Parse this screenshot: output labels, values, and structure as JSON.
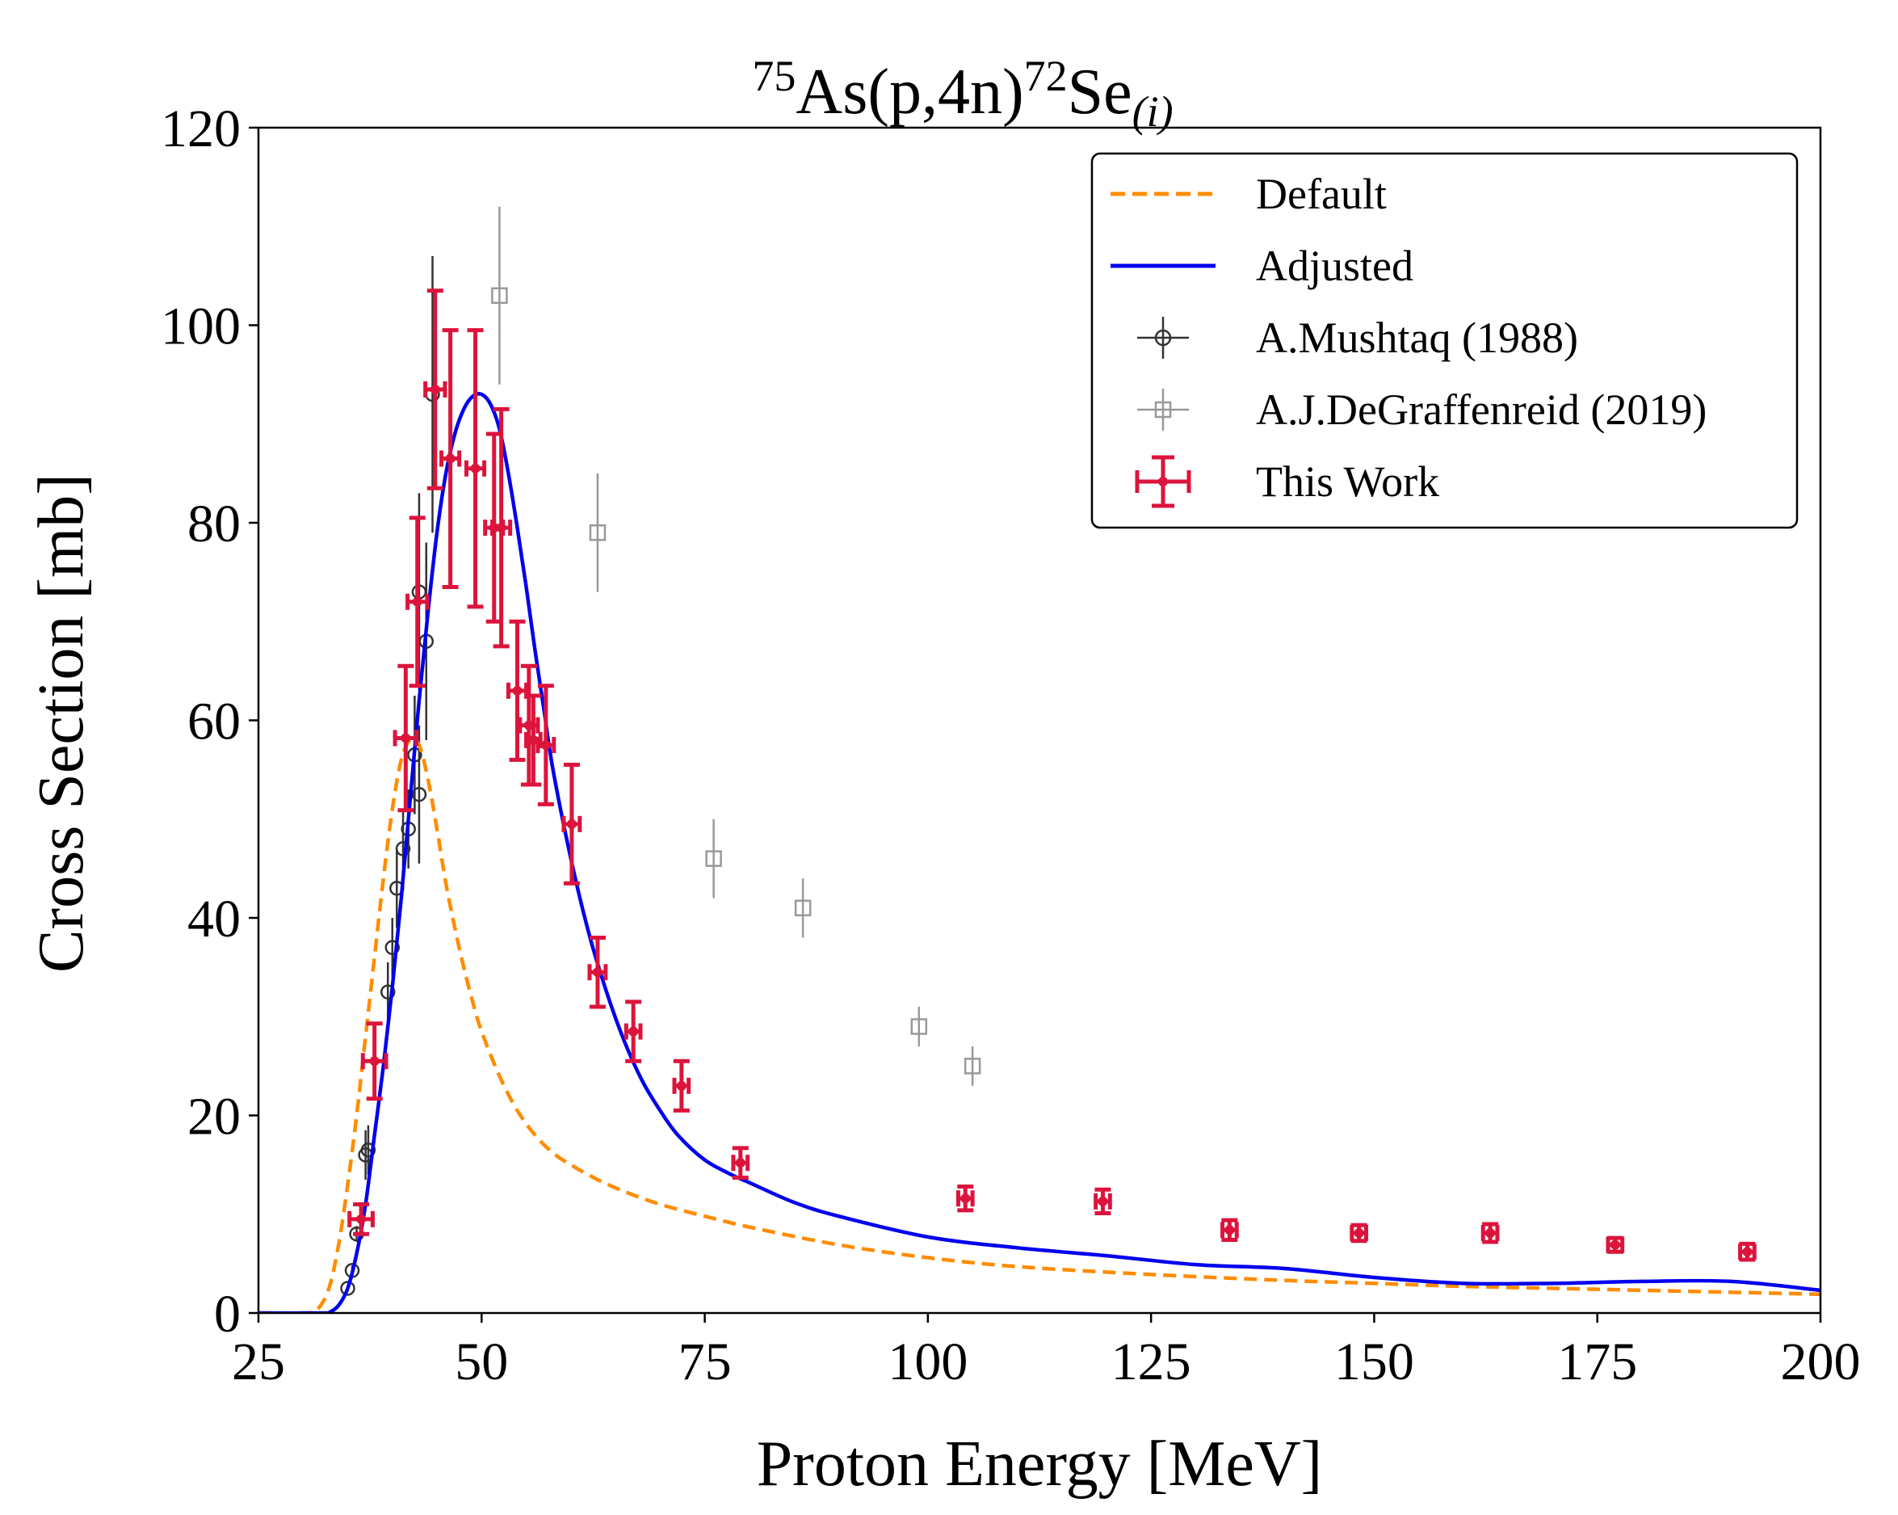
{
  "chart_data": {
    "type": "scatter",
    "title": {
      "target_mass": "75",
      "reaction": "As(p,4n)",
      "product_mass": "72",
      "product": "Se",
      "subscript": "(i)"
    },
    "xlabel": "Proton Energy [MeV]",
    "ylabel": "Cross Section [mb]",
    "xlim": [
      25,
      200
    ],
    "ylim": [
      0,
      120
    ],
    "xticks": [
      25,
      50,
      75,
      100,
      125,
      150,
      175,
      200
    ],
    "yticks": [
      0,
      20,
      40,
      60,
      80,
      100,
      120
    ],
    "grid": false,
    "legend_position": "top-right",
    "colors": {
      "default": "#ff8c00",
      "adjusted": "#0000ee",
      "mushtaq": "#333333",
      "degraffenreid": "#999999",
      "this_work": "#dc143c"
    },
    "curves": [
      {
        "name": "Default",
        "style": "dashed",
        "x": [
          25,
          30,
          31,
          32,
          33,
          34,
          35,
          36,
          37,
          38,
          39,
          40,
          41,
          42,
          43,
          44,
          45,
          46,
          47,
          48,
          49,
          50,
          52,
          54,
          56,
          58,
          60,
          63,
          66,
          70,
          75,
          80,
          90,
          100,
          110,
          125,
          140,
          150,
          160,
          175,
          190,
          200
        ],
        "y": [
          0,
          0,
          0.1,
          0.8,
          2.8,
          7,
          13,
          20,
          28,
          36,
          44,
          51,
          56,
          58,
          57.5,
          54,
          49,
          43.5,
          39,
          35,
          31.5,
          28.5,
          24,
          20.5,
          18,
          16.2,
          15,
          13.5,
          12.3,
          11,
          9.8,
          8.7,
          6.9,
          5.6,
          4.7,
          3.9,
          3.3,
          3.0,
          2.7,
          2.4,
          2.1,
          1.9
        ]
      },
      {
        "name": "Adjusted",
        "style": "solid",
        "x": [
          25,
          32,
          33,
          34,
          35,
          36,
          37,
          38,
          39,
          40,
          41,
          42,
          43,
          44,
          45,
          46,
          47,
          48,
          49,
          50,
          51,
          52,
          53,
          54,
          55,
          56,
          57,
          58,
          60,
          62,
          64,
          66,
          68,
          70,
          72,
          75,
          78,
          80,
          85,
          90,
          100,
          110,
          120,
          130,
          140,
          150,
          160,
          170,
          180,
          190,
          200
        ],
        "y": [
          0,
          0,
          0.1,
          0.8,
          2.5,
          6,
          11,
          18,
          25,
          33,
          42,
          52,
          62,
          71,
          79,
          85,
          89,
          91.5,
          92.8,
          93,
          92,
          89.5,
          85,
          79.5,
          73.5,
          67,
          61,
          55,
          46,
          38.5,
          32.5,
          27.5,
          23.5,
          20.5,
          18,
          15.5,
          14,
          13.2,
          11.2,
          9.8,
          7.7,
          6.6,
          5.8,
          4.9,
          4.5,
          3.6,
          3.0,
          3.0,
          3.2,
          3.2,
          2.3
        ]
      }
    ],
    "series": [
      {
        "name": "A.Mushtaq (1988)",
        "marker": "circle",
        "points": [
          {
            "x": 35,
            "y": 2.5,
            "yerr": 0.3
          },
          {
            "x": 35.5,
            "y": 4.3,
            "yerr": 0.5
          },
          {
            "x": 36,
            "y": 8,
            "yerr": 0.8
          },
          {
            "x": 37,
            "y": 16,
            "yerr": 2.5
          },
          {
            "x": 37.3,
            "y": 16.5,
            "yerr": 2.5
          },
          {
            "x": 39.5,
            "y": 32.5,
            "yerr": 3
          },
          {
            "x": 40,
            "y": 37,
            "yerr": 3
          },
          {
            "x": 40.5,
            "y": 43,
            "yerr": 4
          },
          {
            "x": 41.2,
            "y": 47,
            "yerr": 4
          },
          {
            "x": 41.8,
            "y": 49,
            "yerr": 4
          },
          {
            "x": 42.5,
            "y": 56.5,
            "yerr": 6
          },
          {
            "x": 43,
            "y": 52.5,
            "yerr": 7
          },
          {
            "x": 43,
            "y": 73,
            "yerr": 10
          },
          {
            "x": 43.8,
            "y": 68,
            "yerr": 10
          },
          {
            "x": 44.5,
            "y": 93,
            "yerr": 14
          }
        ]
      },
      {
        "name": "A.J.DeGraffenreid (2019)",
        "marker": "square",
        "points": [
          {
            "x": 52,
            "y": 103,
            "yerr": 9
          },
          {
            "x": 63,
            "y": 79,
            "yerr": 6
          },
          {
            "x": 76,
            "y": 46,
            "yerr": 4
          },
          {
            "x": 86,
            "y": 41,
            "yerr": 3
          },
          {
            "x": 99,
            "y": 29,
            "yerr": 2
          },
          {
            "x": 105,
            "y": 25,
            "yerr": 2
          }
        ]
      },
      {
        "name": "This Work",
        "marker": "errorbar",
        "points": [
          {
            "x": 36.5,
            "y": 9.5,
            "xerr": 1.3,
            "yerr": 1.5
          },
          {
            "x": 38,
            "y": 25.5,
            "xerr": 1.3,
            "yerr": 3.8
          },
          {
            "x": 41.5,
            "y": 58.2,
            "xerr": 1.2,
            "yerr": 7.3
          },
          {
            "x": 42.8,
            "y": 72,
            "xerr": 1.1,
            "yerr": 8.5
          },
          {
            "x": 44.8,
            "y": 93.5,
            "xerr": 1.1,
            "yerr": 10
          },
          {
            "x": 46.5,
            "y": 86.5,
            "xerr": 1.0,
            "yerr": 13
          },
          {
            "x": 49.3,
            "y": 85.5,
            "xerr": 1.0,
            "yerr": 14
          },
          {
            "x": 51.4,
            "y": 79.5,
            "xerr": 1.0,
            "yerr": 9.5
          },
          {
            "x": 52.2,
            "y": 79.5,
            "xerr": 1.0,
            "yerr": 12
          },
          {
            "x": 54,
            "y": 63,
            "xerr": 1.0,
            "yerr": 7
          },
          {
            "x": 55.3,
            "y": 59.5,
            "xerr": 1.0,
            "yerr": 6
          },
          {
            "x": 55.8,
            "y": 58,
            "xerr": 0.8,
            "yerr": 4.5
          },
          {
            "x": 57.2,
            "y": 57.5,
            "xerr": 0.9,
            "yerr": 6
          },
          {
            "x": 60.1,
            "y": 49.5,
            "xerr": 0.9,
            "yerr": 6
          },
          {
            "x": 63,
            "y": 34.5,
            "xerr": 0.9,
            "yerr": 3.5
          },
          {
            "x": 67,
            "y": 28.5,
            "xerr": 0.8,
            "yerr": 3
          },
          {
            "x": 72.4,
            "y": 23,
            "xerr": 0.8,
            "yerr": 2.5
          },
          {
            "x": 79,
            "y": 15.2,
            "xerr": 0.8,
            "yerr": 1.5
          },
          {
            "x": 104.2,
            "y": 11.6,
            "xerr": 0.8,
            "yerr": 1.2
          },
          {
            "x": 119.6,
            "y": 11.3,
            "xerr": 0.8,
            "yerr": 1.2
          },
          {
            "x": 133.8,
            "y": 8.4,
            "xerr": 0.8,
            "yerr": 1.0
          },
          {
            "x": 148.3,
            "y": 8.1,
            "xerr": 0.8,
            "yerr": 0.8
          },
          {
            "x": 163,
            "y": 8.1,
            "xerr": 0.8,
            "yerr": 0.9
          },
          {
            "x": 177,
            "y": 6.9,
            "xerr": 0.8,
            "yerr": 0.7
          },
          {
            "x": 191.8,
            "y": 6.2,
            "xerr": 0.8,
            "yerr": 0.8
          }
        ]
      }
    ],
    "legend": [
      {
        "key": "default",
        "label": "Default"
      },
      {
        "key": "adjusted",
        "label": "Adjusted"
      },
      {
        "key": "mushtaq",
        "label": "A.Mushtaq (1988)"
      },
      {
        "key": "degraffenreid",
        "label": "A.J.DeGraffenreid (2019)"
      },
      {
        "key": "this_work",
        "label": "This Work"
      }
    ]
  }
}
